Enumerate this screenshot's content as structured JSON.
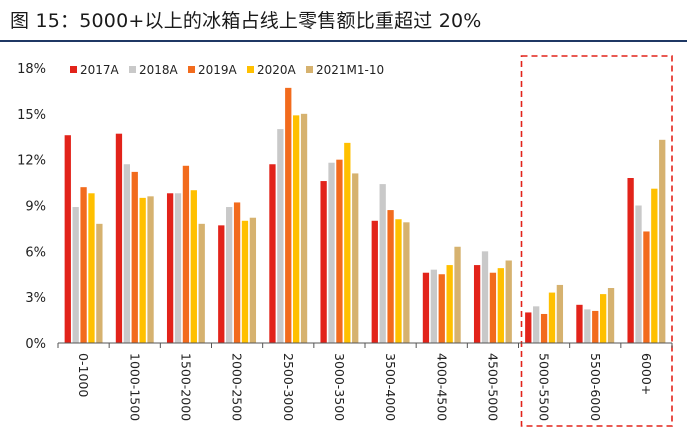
{
  "figure": {
    "title": "图 15：5000+以上的冰箱占线上零售额比重超过 20%"
  },
  "chart_data": {
    "type": "bar",
    "title": "",
    "xlabel": "",
    "ylabel": "",
    "ylim": [
      0,
      18
    ],
    "yticks": [
      "0%",
      "3%",
      "6%",
      "9%",
      "12%",
      "15%",
      "18%"
    ],
    "ytick_values": [
      0,
      3,
      6,
      9,
      12,
      15,
      18
    ],
    "grid": false,
    "legend_position": "top-left",
    "categories": [
      "0-1000",
      "1000-1500",
      "1500-2000",
      "2000-2500",
      "2500-3000",
      "3000-3500",
      "3500-4000",
      "4000-4500",
      "4500-5000",
      "5000-5500",
      "5500-6000",
      "6000+"
    ],
    "highlight_categories": [
      "5000-5500",
      "5500-6000",
      "6000+"
    ],
    "series": [
      {
        "name": "2017A",
        "color": "#e2231a",
        "values": [
          13.6,
          13.7,
          9.8,
          7.7,
          11.7,
          10.6,
          8.0,
          4.6,
          5.1,
          2.0,
          2.5,
          10.8
        ]
      },
      {
        "name": "2018A",
        "color": "#c9c9c9",
        "values": [
          8.9,
          11.7,
          9.8,
          8.9,
          14.0,
          11.8,
          10.4,
          4.8,
          6.0,
          2.4,
          2.2,
          9.0
        ]
      },
      {
        "name": "2019A",
        "color": "#f26b1d",
        "values": [
          10.2,
          11.2,
          11.6,
          9.2,
          16.7,
          12.0,
          8.7,
          4.5,
          4.6,
          1.9,
          2.1,
          7.3
        ]
      },
      {
        "name": "2020A",
        "color": "#ffc000",
        "values": [
          9.8,
          9.5,
          10.0,
          8.0,
          14.9,
          13.1,
          8.1,
          5.1,
          4.9,
          3.3,
          3.2,
          10.1
        ]
      },
      {
        "name": "2021M1-10",
        "color": "#d6b26f",
        "values": [
          7.8,
          9.6,
          7.8,
          8.2,
          15.0,
          11.1,
          7.9,
          6.3,
          5.4,
          3.8,
          3.6,
          13.3
        ]
      }
    ]
  }
}
